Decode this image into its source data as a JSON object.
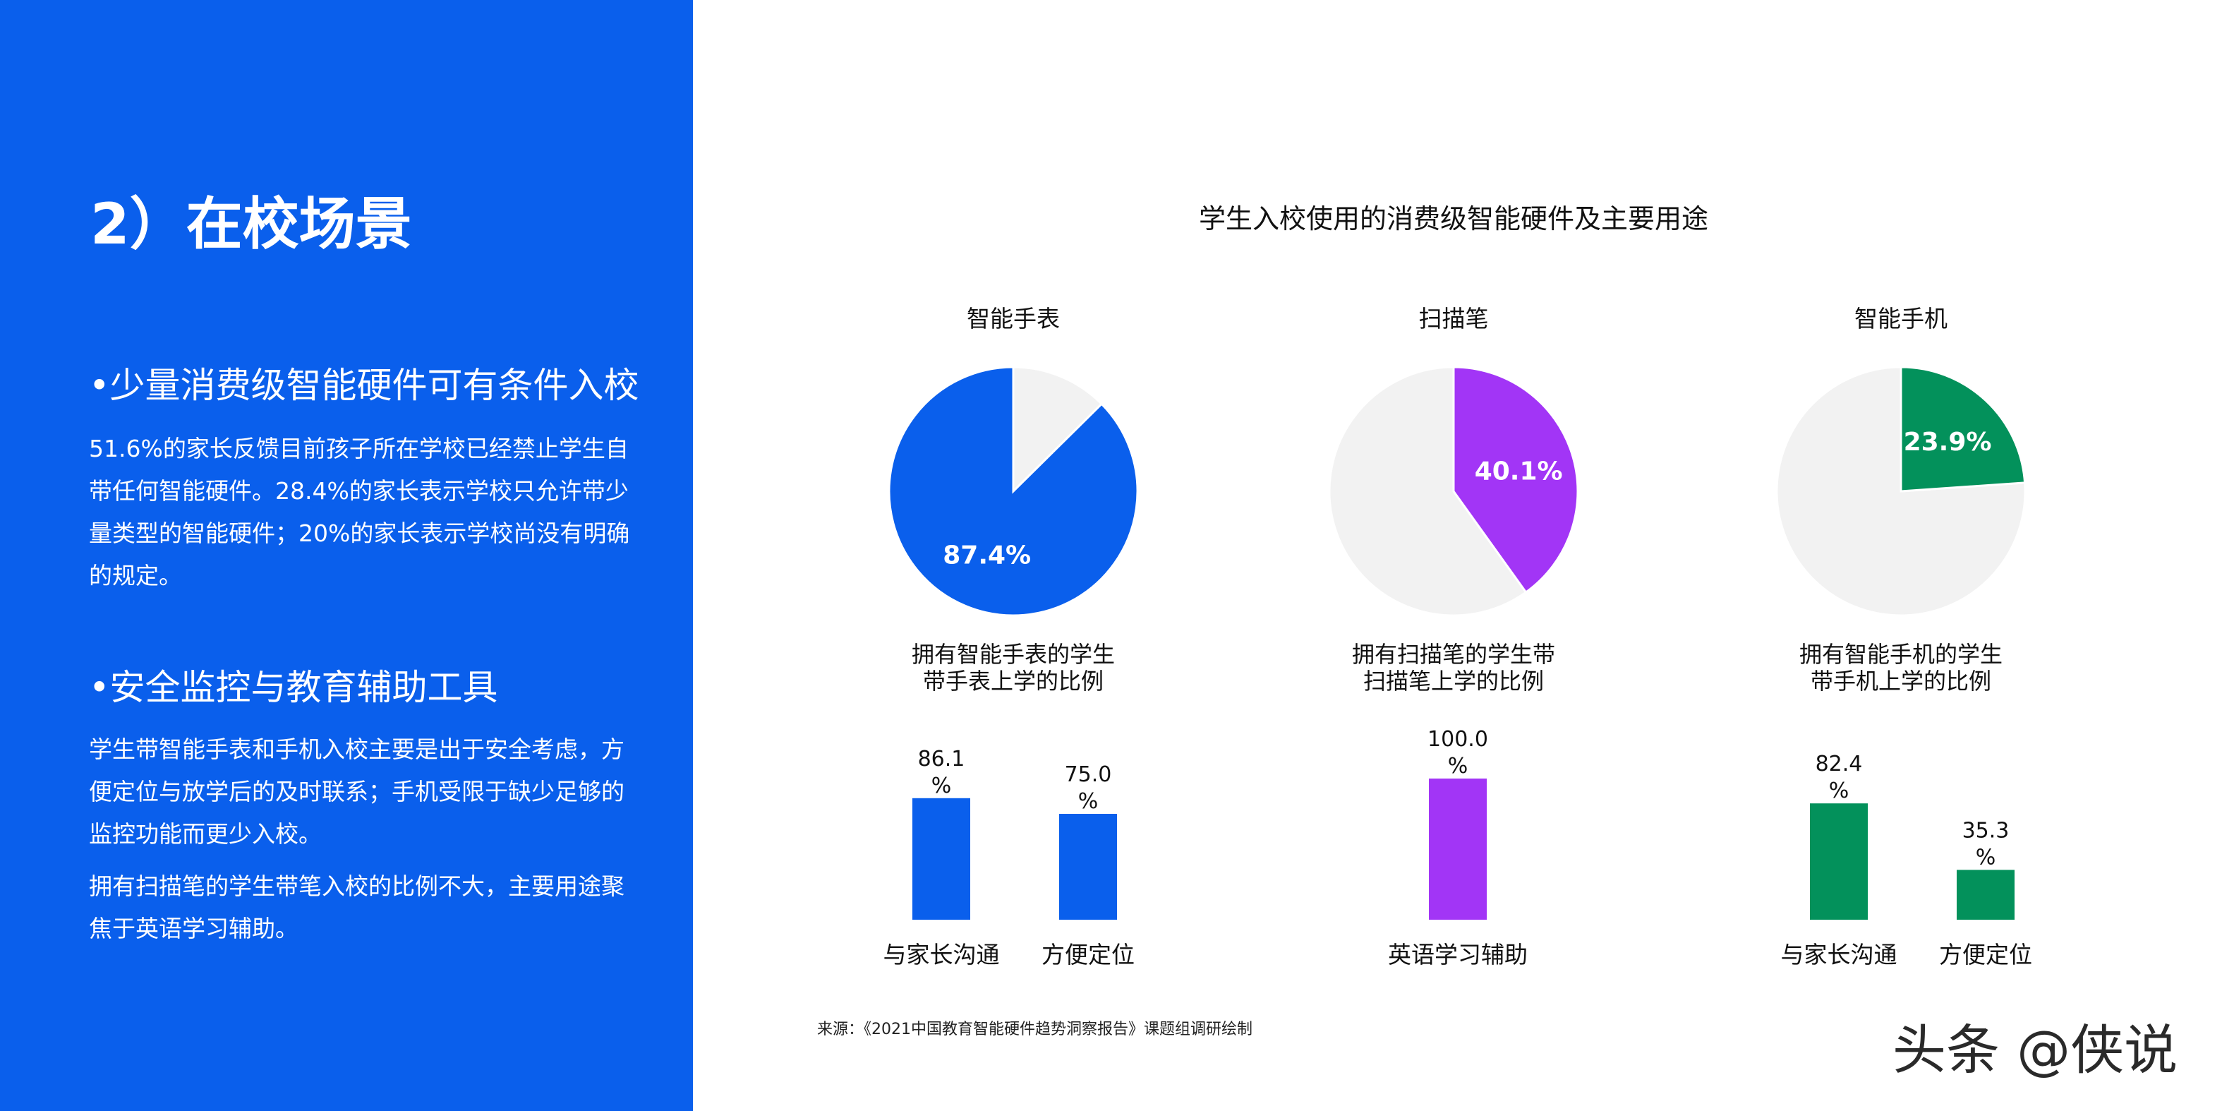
{
  "left_panel": {
    "heading": "2）在校场景",
    "section1": {
      "title": "•少量消费级智能硬件可有条件入校",
      "body": "51.6%的家长反馈目前孩子所在学校已经禁止学生自带任何智能硬件。28.4%的家长表示学校只允许带少量类型的智能硬件；20%的家长表示学校尚没有明确的规定。"
    },
    "section2": {
      "title": "•安全监控与教育辅助工具",
      "body1": "学生带智能手表和手机入校主要是出于安全考虑，方便定位与放学后的及时联系；手机受限于缺少足够的监控功能而更少入校。",
      "body2": "拥有扫描笔的学生带笔入校的比例不大，主要用途聚焦于英语学习辅助。"
    },
    "background_color": "#0A5FEC"
  },
  "chart_data": [
    {
      "type": "pie",
      "title": "智能手表",
      "caption": [
        "拥有智能手表的学生",
        "带手表上学的比例"
      ],
      "value": 87.4,
      "label": "87.4%",
      "color": "#0A5FEC",
      "rest_color": "#F2F2F2"
    },
    {
      "type": "pie",
      "title": "扫描笔",
      "caption": [
        "拥有扫描笔的学生带",
        "扫描笔上学的比例"
      ],
      "value": 40.1,
      "label": "40.1%",
      "color": "#A235F6",
      "rest_color": "#F2F2F2"
    },
    {
      "type": "pie",
      "title": "智能手机",
      "caption": [
        "拥有智能手机的学生",
        "带手机上学的比例"
      ],
      "value": 23.9,
      "label": "23.9%",
      "color": "#03915B",
      "rest_color": "#F2F2F2"
    },
    {
      "type": "bar",
      "categories": [
        "与家长沟通",
        "方便定位"
      ],
      "values": [
        86.1,
        75.0
      ],
      "labels": [
        [
          "86.1",
          "%"
        ],
        [
          "75.0",
          "%"
        ]
      ],
      "color": "#0A5FEC"
    },
    {
      "type": "bar",
      "categories": [
        "英语学习辅助"
      ],
      "values": [
        100.0
      ],
      "labels": [
        [
          "100.0",
          "%"
        ]
      ],
      "color": "#A235F6"
    },
    {
      "type": "bar",
      "categories": [
        "与家长沟通",
        "方便定位"
      ],
      "values": [
        82.4,
        35.3
      ],
      "labels": [
        [
          "82.4",
          "%"
        ],
        [
          "35.3",
          "%"
        ]
      ],
      "color": "#03915B"
    }
  ],
  "chart_title": "学生入校使用的消费级智能硬件及主要用途",
  "source": "来源：《2021中国教育智能硬件趋势洞察报告》课题组调研绘制",
  "watermark": "头条 @侠说"
}
